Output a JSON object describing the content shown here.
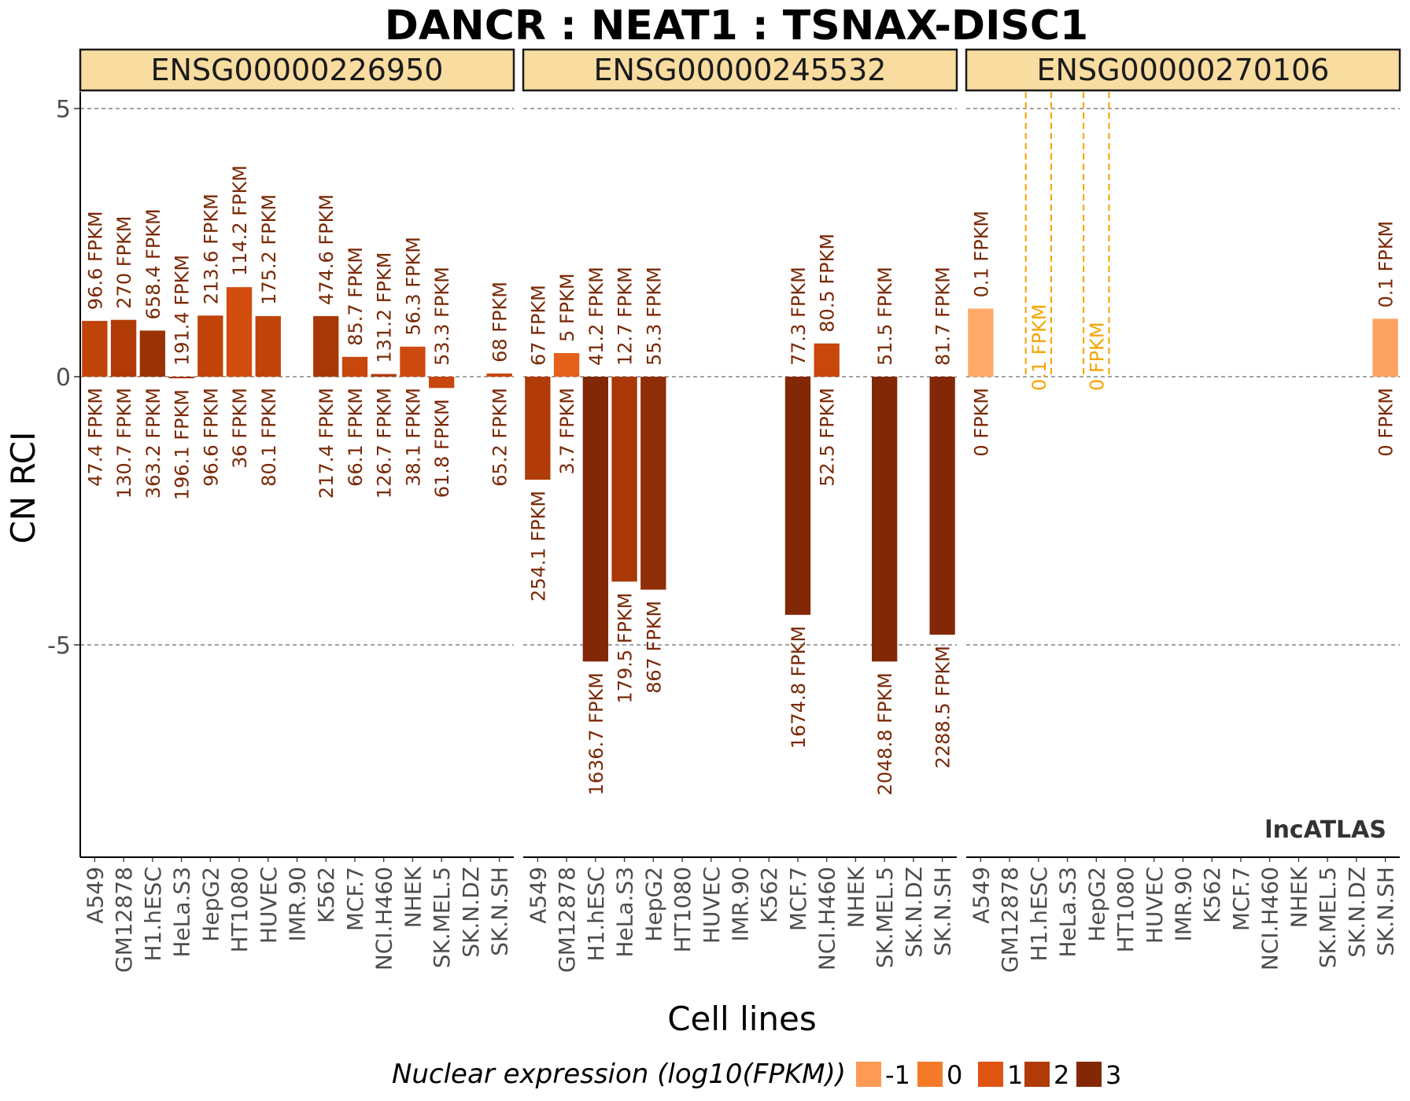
{
  "chart_data": {
    "type": "bar",
    "title": "DANCR : NEAT1 : TSNAX-DISC1",
    "xlabel": "Cell lines",
    "ylabel": "CN RCI",
    "y_ticks": [
      5,
      0,
      -5
    ],
    "y_tick_labels": [
      "5",
      "0",
      "-5"
    ],
    "ylim": [
      -8.9,
      5.3
    ],
    "categories": [
      "A549",
      "GM12878",
      "H1.hESC",
      "HeLa.S3",
      "HepG2",
      "HT1080",
      "HUVEC",
      "IMR.90",
      "K562",
      "MCF.7",
      "NCI.H460",
      "NHEK",
      "SK.MEL.5",
      "SK.N.DZ",
      "SK.N.SH"
    ],
    "watermark": "lncATLAS",
    "legend": {
      "title": "Nuclear expression (log10(FPKM))",
      "items": [
        {
          "label": "-1",
          "color": "#fd9a56"
        },
        {
          "label": "0",
          "color": "#f47a28"
        },
        {
          "label": "1",
          "color": "#de5410"
        },
        {
          "label": "2",
          "color": "#b03b07"
        },
        {
          "label": "3",
          "color": "#832806"
        }
      ]
    },
    "panels": [
      {
        "strip": "ENSG00000226950",
        "bars": [
          {
            "cell": "A549",
            "value": 1.04,
            "cyto": "96.6 FPKM",
            "nuc": "47.4 FPKM",
            "color": "#c0430a"
          },
          {
            "cell": "GM12878",
            "value": 1.06,
            "cyto": "270 FPKM",
            "nuc": "130.7 FPKM",
            "color": "#b03b07"
          },
          {
            "cell": "H1.hESC",
            "value": 0.86,
            "cyto": "658.4 FPKM",
            "nuc": "363.2 FPKM",
            "color": "#9b3206"
          },
          {
            "cell": "HeLa.S3",
            "value": -0.03,
            "cyto": "191.4 FPKM",
            "nuc": "196.1 FPKM",
            "color": "#a83806"
          },
          {
            "cell": "HepG2",
            "value": 1.14,
            "cyto": "213.6 FPKM",
            "nuc": "96.6 FPKM",
            "color": "#c0430a"
          },
          {
            "cell": "HT1080",
            "value": 1.67,
            "cyto": "114.2 FPKM",
            "nuc": "36 FPKM",
            "color": "#d24d0e"
          },
          {
            "cell": "HUVEC",
            "value": 1.13,
            "cyto": "175.2 FPKM",
            "nuc": "80.1 FPKM",
            "color": "#c0430a"
          },
          {
            "cell": "K562",
            "value": 1.13,
            "cyto": "474.6 FPKM",
            "nuc": "217.4 FPKM",
            "color": "#a83806"
          },
          {
            "cell": "MCF.7",
            "value": 0.37,
            "cyto": "85.7 FPKM",
            "nuc": "66.1 FPKM",
            "color": "#c8470c"
          },
          {
            "cell": "NCI.H460",
            "value": 0.05,
            "cyto": "131.2 FPKM",
            "nuc": "126.7 FPKM",
            "color": "#b03b07"
          },
          {
            "cell": "NHEK",
            "value": 0.56,
            "cyto": "56.3 FPKM",
            "nuc": "38.1 FPKM",
            "color": "#cc4a0d"
          },
          {
            "cell": "SK.MEL.5",
            "value": -0.21,
            "cyto": "53.3 FPKM",
            "nuc": "61.8 FPKM",
            "color": "#c8470c"
          },
          {
            "cell": "SK.N.SH",
            "value": 0.06,
            "cyto": "68 FPKM",
            "nuc": "65.2 FPKM",
            "color": "#c8470c"
          }
        ]
      },
      {
        "strip": "ENSG00000245532",
        "bars": [
          {
            "cell": "A549",
            "value": -1.92,
            "cyto": "67 FPKM",
            "nuc": "254.1 FPKM",
            "color": "#b03b07"
          },
          {
            "cell": "GM12878",
            "value": 0.44,
            "cyto": "5 FPKM",
            "nuc": "3.7 FPKM",
            "color": "#e5601a"
          },
          {
            "cell": "H1.hESC",
            "value": -5.31,
            "cyto": "41.2 FPKM",
            "nuc": "1636.7 FPKM",
            "color": "#832806"
          },
          {
            "cell": "HeLa.S3",
            "value": -3.82,
            "cyto": "12.7 FPKM",
            "nuc": "179.5 FPKM",
            "color": "#a83806"
          },
          {
            "cell": "HepG2",
            "value": -3.97,
            "cyto": "55.3 FPKM",
            "nuc": "867 FPKM",
            "color": "#8f2d06"
          },
          {
            "cell": "MCF.7",
            "value": -4.44,
            "cyto": "77.3 FPKM",
            "nuc": "1674.8 FPKM",
            "color": "#832806"
          },
          {
            "cell": "NCI.H460",
            "value": 0.62,
            "cyto": "80.5 FPKM",
            "nuc": "52.5 FPKM",
            "color": "#c8470c"
          },
          {
            "cell": "SK.MEL.5",
            "value": -5.31,
            "cyto": "51.5 FPKM",
            "nuc": "2048.8 FPKM",
            "color": "#832806"
          },
          {
            "cell": "SK.N.SH",
            "value": -4.81,
            "cyto": "81.7 FPKM",
            "nuc": "2288.5 FPKM",
            "color": "#832806"
          }
        ]
      },
      {
        "strip": "ENSG00000270106",
        "bars": [
          {
            "cell": "A549",
            "value": 1.27,
            "cyto": "0.1 FPKM",
            "nuc": "0 FPKM",
            "color": "#fdaa6b"
          },
          {
            "cell": "SK.N.SH",
            "value": 1.08,
            "cyto": "0.1 FPKM",
            "nuc": "0 FPKM",
            "color": "#fda361"
          }
        ],
        "dashed": [
          {
            "cell": "H1.hESC",
            "label": "0.1 FPKM"
          },
          {
            "cell": "HepG2",
            "label": "0 FPKM"
          }
        ]
      }
    ]
  }
}
